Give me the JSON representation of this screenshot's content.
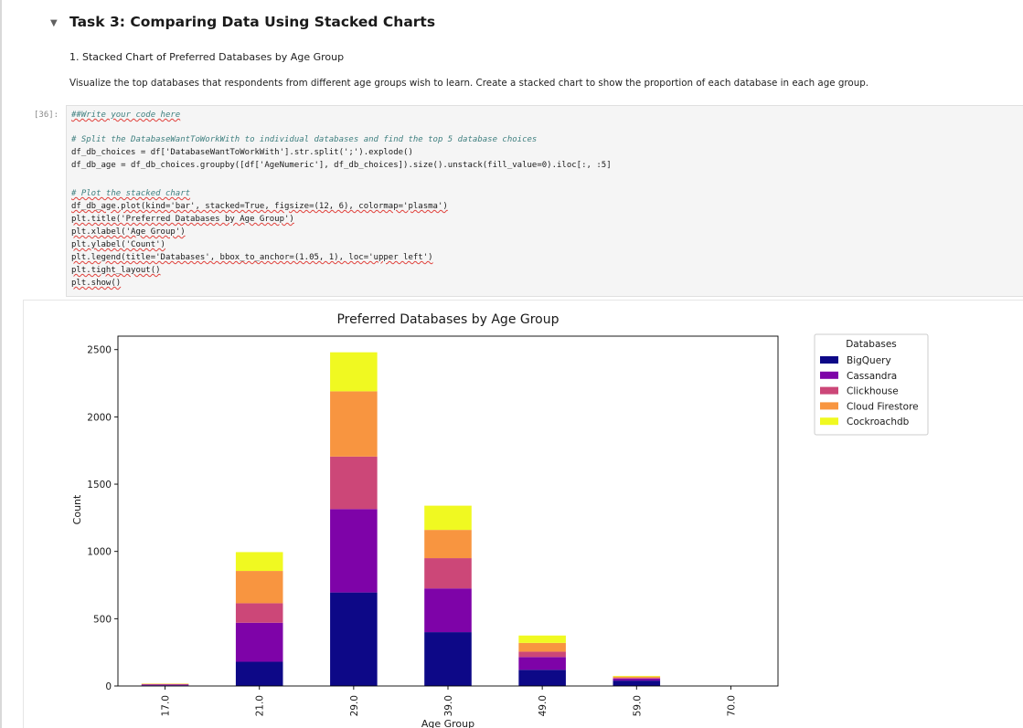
{
  "notebook": {
    "task_heading": "Task 3: Comparing Data Using Stacked Charts",
    "subheading": "1. Stacked Chart of Preferred Databases by Age Group",
    "instructions": "Visualize the top databases that respondents from different age groups wish to learn. Create a stacked chart to show the proportion of each database in each age group.",
    "cell_prompt": "[36]:"
  },
  "code_lines": [
    "##Write your code here",
    "",
    "# Split the DatabaseWantToWorkWith to individual databases and find the top 5 database choices",
    "df_db_choices = df['DatabaseWantToWorkWith'].str.split(';').explode()",
    "df_db_age = df_db_choices.groupby([df['AgeNumeric'], df_db_choices]).size().unstack(fill_value=0).iloc[:, :5]",
    "",
    "# Plot the stacked chart",
    "df_db_age.plot(kind='bar', stacked=True, figsize=(12, 6), colormap='plasma')",
    "plt.title('Preferred Databases by Age Group')",
    "plt.xlabel('Age Group')",
    "plt.ylabel('Count')",
    "plt.legend(title='Databases', bbox_to_anchor=(1.05, 1), loc='upper left')",
    "plt.tight_layout()",
    "plt.show()"
  ],
  "chart_data": {
    "type": "bar",
    "stacked": true,
    "title": "Preferred Databases by Age Group",
    "xlabel": "Age Group",
    "ylabel": "Count",
    "categories": [
      "17.0",
      "21.0",
      "29.0",
      "39.0",
      "49.0",
      "59.0",
      "70.0"
    ],
    "ylim": [
      0,
      2600
    ],
    "yticks": [
      0,
      500,
      1000,
      1500,
      2000,
      2500
    ],
    "legend_title": "Databases",
    "legend_position": "outside-upper-right",
    "series": [
      {
        "name": "BigQuery",
        "color": "#0d0887",
        "values": [
          5,
          180,
          695,
          400,
          120,
          40,
          0
        ]
      },
      {
        "name": "Cassandra",
        "color": "#7e03a8",
        "values": [
          5,
          290,
          620,
          325,
          95,
          15,
          0
        ]
      },
      {
        "name": "Clickhouse",
        "color": "#cc4778",
        "values": [
          3,
          145,
          390,
          225,
          40,
          5,
          0
        ]
      },
      {
        "name": "Cloud Firestore",
        "color": "#f89540",
        "values": [
          3,
          240,
          485,
          210,
          65,
          10,
          0
        ]
      },
      {
        "name": "Cockroachdb",
        "color": "#f0f921",
        "values": [
          2,
          140,
          290,
          180,
          55,
          5,
          0
        ]
      }
    ]
  }
}
